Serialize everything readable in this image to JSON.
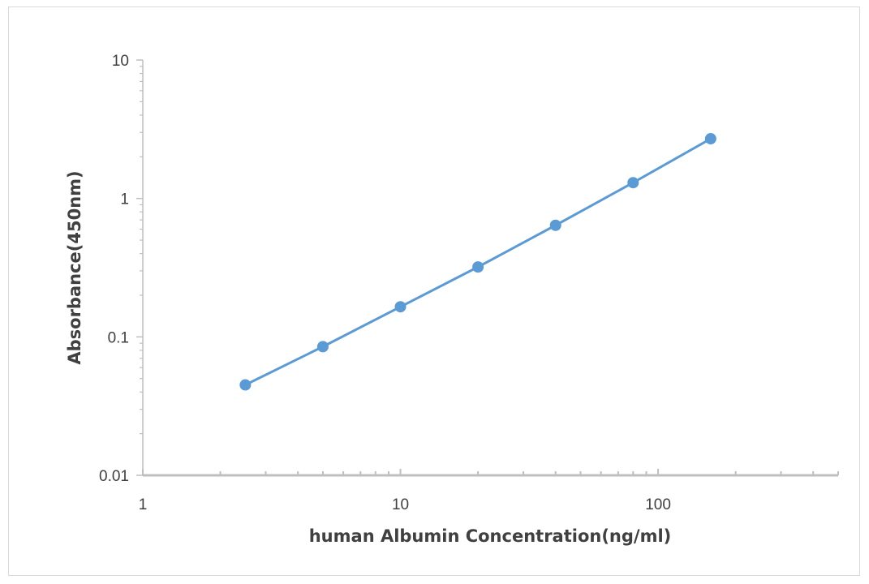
{
  "chart_data": {
    "type": "scatter",
    "title": "",
    "xlabel": "human Albumin Concentration(ng/ml)",
    "ylabel": "Absorbance(450nm)",
    "x_scale": "log",
    "y_scale": "log",
    "xlim": [
      1,
      500
    ],
    "ylim": [
      0.01,
      10
    ],
    "x_ticks": [
      "1",
      "10",
      "100"
    ],
    "y_ticks": [
      "0.01",
      "0.1",
      "1",
      "10"
    ],
    "grid": false,
    "legend": "none",
    "series": [
      {
        "x": [
          2.5,
          5,
          10,
          20,
          40,
          80,
          160
        ],
        "y": [
          0.045,
          0.085,
          0.165,
          0.32,
          0.64,
          1.3,
          2.7
        ],
        "color": "#5b9bd5",
        "connected": true
      }
    ]
  }
}
